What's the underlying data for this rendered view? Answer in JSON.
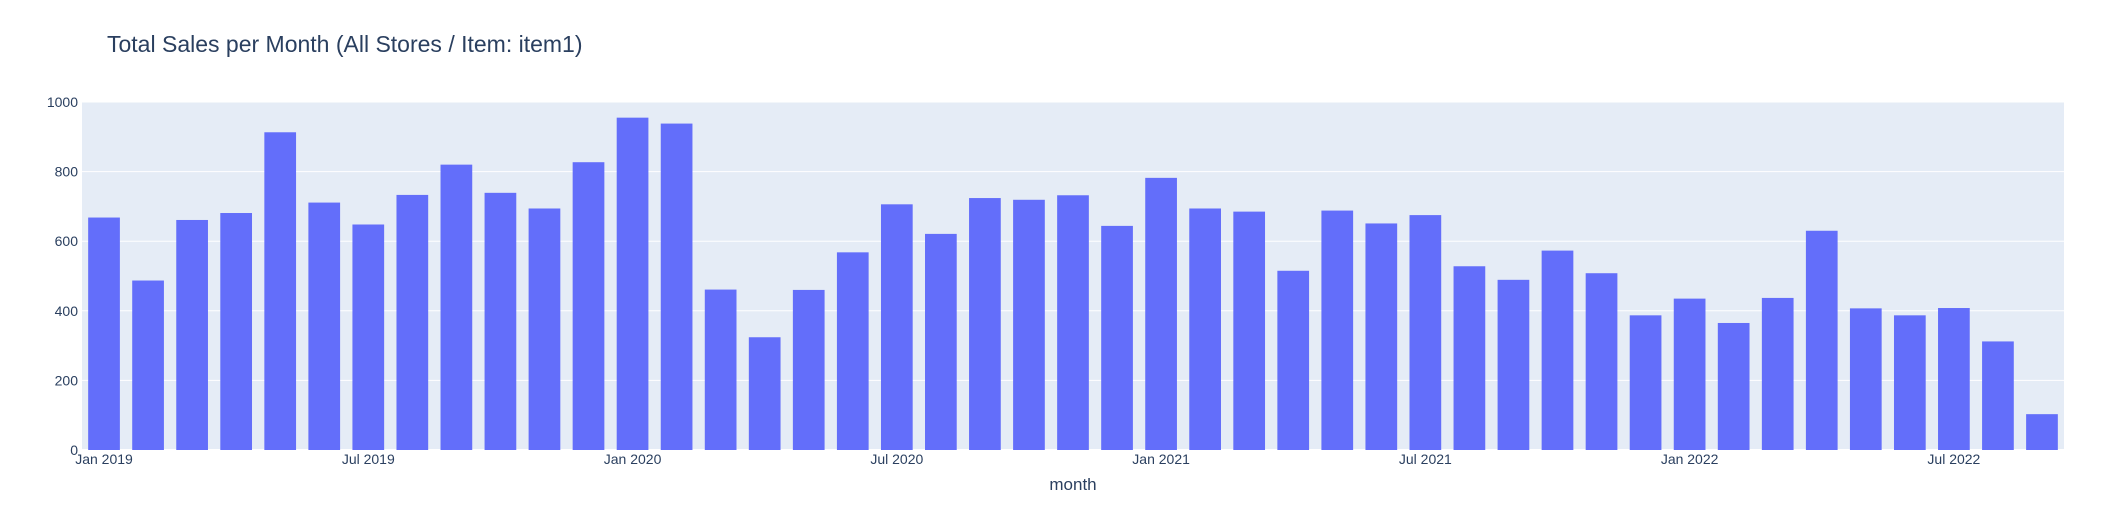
{
  "chart_data": {
    "type": "bar",
    "title": "Total Sales per Month (All Stores / Item: item1)",
    "xlabel": "month",
    "ylabel": "",
    "ylim": [
      0,
      1000
    ],
    "yticks": [
      0,
      200,
      400,
      600,
      800,
      1000
    ],
    "xticks": [
      {
        "label": "Jan 2019",
        "index": 0
      },
      {
        "label": "Jul 2019",
        "index": 6
      },
      {
        "label": "Jan 2020",
        "index": 12
      },
      {
        "label": "Jul 2020",
        "index": 18
      },
      {
        "label": "Jan 2021",
        "index": 24
      },
      {
        "label": "Jul 2021",
        "index": 30
      },
      {
        "label": "Jan 2022",
        "index": 36
      },
      {
        "label": "Jul 2022",
        "index": 42
      }
    ],
    "categories": [
      "2019-01",
      "2019-02",
      "2019-03",
      "2019-04",
      "2019-05",
      "2019-06",
      "2019-07",
      "2019-08",
      "2019-09",
      "2019-10",
      "2019-11",
      "2019-12",
      "2020-01",
      "2020-02",
      "2020-03",
      "2020-04",
      "2020-05",
      "2020-06",
      "2020-07",
      "2020-08",
      "2020-09",
      "2020-10",
      "2020-11",
      "2020-12",
      "2021-01",
      "2021-02",
      "2021-03",
      "2021-04",
      "2021-05",
      "2021-06",
      "2021-07",
      "2021-08",
      "2021-09",
      "2021-10",
      "2021-11",
      "2021-12",
      "2022-01",
      "2022-02",
      "2022-03",
      "2022-04",
      "2022-05",
      "2022-06",
      "2022-07",
      "2022-08",
      "2022-09"
    ],
    "values": [
      668,
      487,
      661,
      681,
      913,
      711,
      648,
      733,
      820,
      739,
      694,
      827,
      955,
      938,
      461,
      324,
      460,
      568,
      706,
      621,
      724,
      719,
      732,
      644,
      782,
      694,
      685,
      515,
      688,
      651,
      675,
      528,
      489,
      573,
      508,
      387,
      435,
      365,
      437,
      630,
      407,
      387,
      408,
      312,
      103
    ],
    "colors": {
      "bar": "#636efa",
      "plot_background": "#e5ecf6",
      "grid": "#ffffff",
      "text": "#2a3f5f"
    },
    "grid": true,
    "legend": "none"
  }
}
